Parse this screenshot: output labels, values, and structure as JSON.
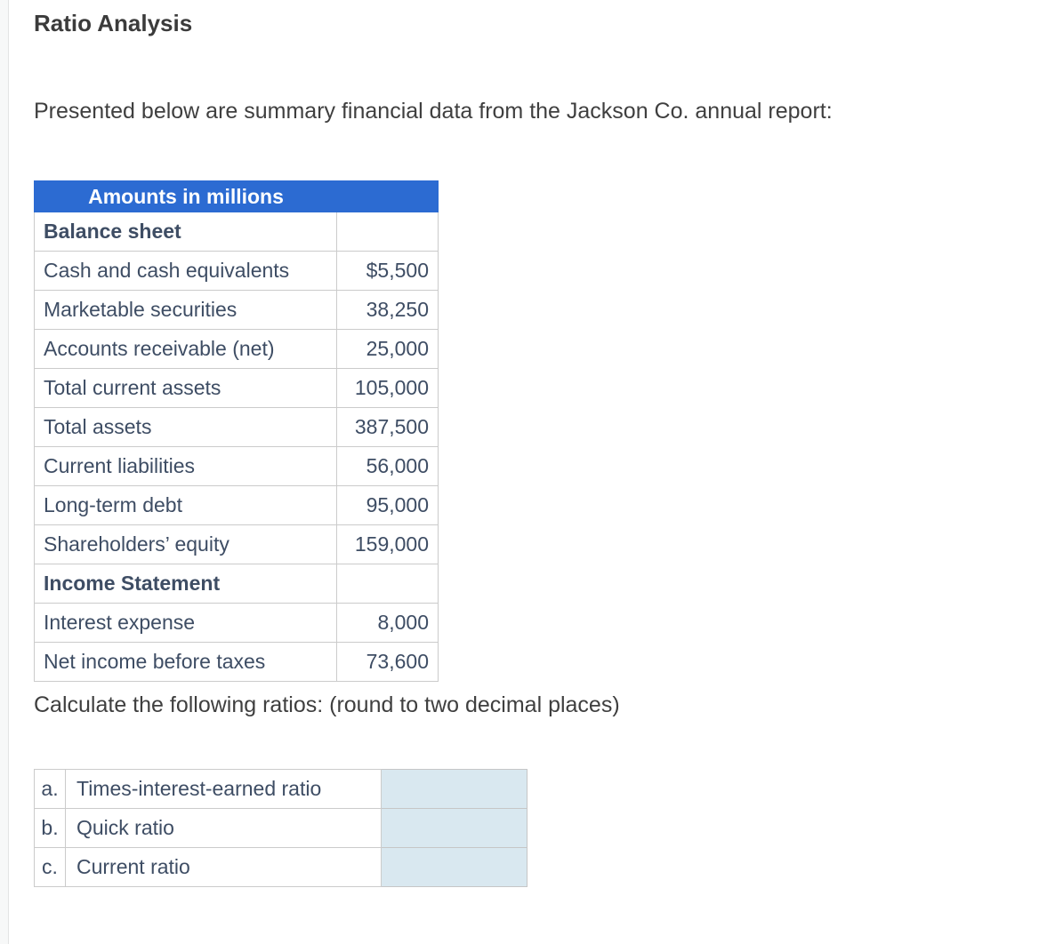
{
  "page": {
    "title": "Ratio Analysis",
    "intro": "Presented below are summary financial data from the Jackson Co. annual report:",
    "instruction": "Calculate the following ratios: (round to two decimal places)"
  },
  "colors": {
    "header_bg": "#2c6bd2",
    "header_text": "#ffffff",
    "table_text": "#3e4d64",
    "body_text": "#3f3f3f",
    "answer_box_bg": "#d9e8f0",
    "border": "#cbcbcb"
  },
  "financial_table": {
    "header": "Amounts in millions",
    "rows": [
      {
        "label": "Balance sheet",
        "value": "",
        "section": true
      },
      {
        "label": "Cash and cash equivalents",
        "value": "$5,500",
        "section": false
      },
      {
        "label": "Marketable securities",
        "value": "38,250",
        "section": false
      },
      {
        "label": "Accounts receivable (net)",
        "value": "25,000",
        "section": false
      },
      {
        "label": "Total current assets",
        "value": "105,000",
        "section": false
      },
      {
        "label": "Total assets",
        "value": "387,500",
        "section": false
      },
      {
        "label": "Current liabilities",
        "value": "56,000",
        "section": false
      },
      {
        "label": "Long-term debt",
        "value": "95,000",
        "section": false
      },
      {
        "label": "Shareholders’ equity",
        "value": "159,000",
        "section": false
      },
      {
        "label": "Income Statement",
        "value": "",
        "section": true
      },
      {
        "label": "Interest expense",
        "value": "8,000",
        "section": false
      },
      {
        "label": "Net income before taxes",
        "value": "73,600",
        "section": false
      }
    ]
  },
  "ratio_table": {
    "rows": [
      {
        "letter": "a.",
        "label": "Times-interest-earned ratio",
        "answer": ""
      },
      {
        "letter": "b.",
        "label": "Quick ratio",
        "answer": ""
      },
      {
        "letter": "c.",
        "label": "Current ratio",
        "answer": ""
      }
    ]
  }
}
